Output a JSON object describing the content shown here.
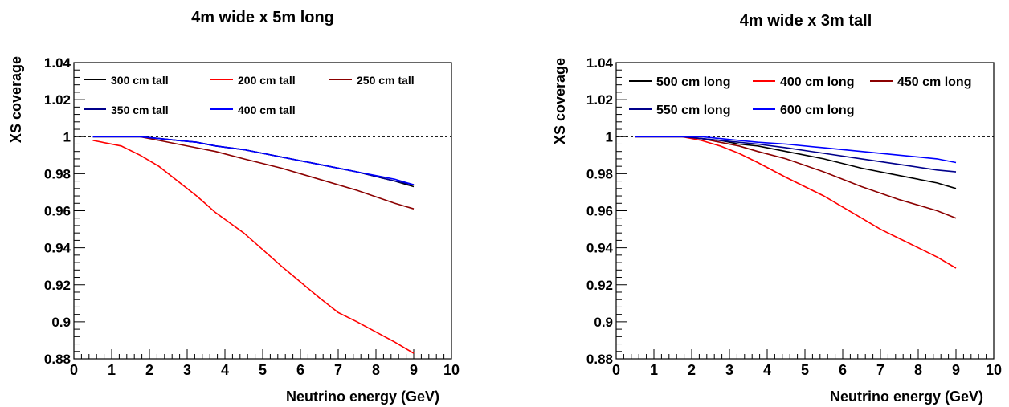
{
  "chart_data": [
    {
      "type": "line",
      "title": "4m wide x 5m long",
      "xlabel": "Neutrino energy (GeV)",
      "ylabel": "XS coverage",
      "xlim": [
        0,
        10
      ],
      "ylim": [
        0.88,
        1.04
      ],
      "x_ticks": [
        "0",
        "1",
        "2",
        "3",
        "4",
        "5",
        "6",
        "7",
        "8",
        "9",
        "10"
      ],
      "y_ticks": [
        "0.88",
        "0.9",
        "0.92",
        "0.94",
        "0.96",
        "0.98",
        "1",
        "1.02",
        "1.04"
      ],
      "reference_line": {
        "y": 1,
        "style": "dotted"
      },
      "legend_rows": [
        [
          0,
          1,
          2
        ],
        [
          3,
          4
        ]
      ],
      "series": [
        {
          "name": "300 cm tall",
          "color": "#000000",
          "x": [
            0.5,
            1.25,
            1.75,
            2.25,
            2.75,
            3.25,
            3.75,
            4.5,
            5.5,
            6.5,
            7.5,
            8.5,
            9.0
          ],
          "y": [
            1.0,
            1.0,
            1.0,
            0.999,
            0.998,
            0.997,
            0.995,
            0.993,
            0.989,
            0.985,
            0.981,
            0.976,
            0.973
          ]
        },
        {
          "name": "200 cm tall",
          "color": "#ff0000",
          "x": [
            0.5,
            1.25,
            1.75,
            2.25,
            2.75,
            3.25,
            3.75,
            4.5,
            5.5,
            6.5,
            7.0,
            7.5,
            8.5,
            9.0
          ],
          "y": [
            0.998,
            0.995,
            0.99,
            0.984,
            0.976,
            0.968,
            0.959,
            0.948,
            0.93,
            0.913,
            0.905,
            0.9,
            0.889,
            0.883
          ]
        },
        {
          "name": "250 cm tall",
          "color": "#8b0000",
          "x": [
            0.5,
            1.25,
            1.75,
            2.25,
            2.75,
            3.25,
            3.75,
            4.5,
            5.5,
            6.5,
            7.5,
            8.5,
            9.0
          ],
          "y": [
            1.0,
            1.0,
            1.0,
            0.998,
            0.996,
            0.994,
            0.992,
            0.988,
            0.983,
            0.977,
            0.971,
            0.964,
            0.961
          ]
        },
        {
          "name": "350 cm tall",
          "color": "#00008b",
          "x": [
            0.5,
            1.25,
            1.75,
            2.25,
            2.75,
            3.25,
            3.75,
            4.5,
            5.5,
            6.5,
            7.5,
            8.5,
            9.0
          ],
          "y": [
            1.0,
            1.0,
            1.0,
            0.999,
            0.998,
            0.997,
            0.995,
            0.993,
            0.989,
            0.985,
            0.981,
            0.976,
            0.974
          ]
        },
        {
          "name": "400 cm tall",
          "color": "#0000ff",
          "x": [
            0.5,
            1.25,
            1.75,
            2.25,
            2.75,
            3.25,
            3.75,
            4.5,
            5.5,
            6.5,
            7.5,
            8.5,
            9.0
          ],
          "y": [
            1.0,
            1.0,
            1.0,
            0.999,
            0.998,
            0.997,
            0.995,
            0.993,
            0.989,
            0.985,
            0.981,
            0.977,
            0.974
          ]
        }
      ]
    },
    {
      "type": "line",
      "title": "4m wide x 3m tall",
      "xlabel": "Neutrino energy (GeV)",
      "ylabel": "XS coverage",
      "xlim": [
        0,
        10
      ],
      "ylim": [
        0.88,
        1.04
      ],
      "x_ticks": [
        "0",
        "1",
        "2",
        "3",
        "4",
        "5",
        "6",
        "7",
        "8",
        "9",
        "10"
      ],
      "y_ticks": [
        "0.88",
        "0.9",
        "0.92",
        "0.94",
        "0.96",
        "0.98",
        "1",
        "1.02",
        "1.04"
      ],
      "reference_line": {
        "y": 1,
        "style": "dotted"
      },
      "legend_rows": [
        [
          0,
          1,
          2
        ],
        [
          3,
          4
        ]
      ],
      "series": [
        {
          "name": "500 cm long",
          "color": "#000000",
          "x": [
            0.5,
            1.25,
            1.75,
            2.25,
            2.75,
            3.25,
            3.75,
            4.5,
            5.5,
            6.5,
            7.5,
            8.5,
            9.0
          ],
          "y": [
            1.0,
            1.0,
            1.0,
            0.999,
            0.998,
            0.996,
            0.995,
            0.992,
            0.988,
            0.983,
            0.979,
            0.975,
            0.972
          ]
        },
        {
          "name": "400 cm long",
          "color": "#ff0000",
          "x": [
            0.5,
            1.25,
            1.75,
            2.25,
            2.75,
            3.25,
            3.75,
            4.5,
            5.5,
            6.5,
            7.0,
            7.5,
            8.5,
            9.0
          ],
          "y": [
            1.0,
            1.0,
            1.0,
            0.998,
            0.995,
            0.991,
            0.986,
            0.978,
            0.968,
            0.956,
            0.95,
            0.945,
            0.935,
            0.929
          ]
        },
        {
          "name": "450 cm long",
          "color": "#8b0000",
          "x": [
            0.5,
            1.25,
            1.75,
            2.25,
            2.75,
            3.25,
            3.75,
            4.5,
            5.5,
            6.5,
            7.5,
            8.5,
            9.0
          ],
          "y": [
            1.0,
            1.0,
            1.0,
            0.999,
            0.997,
            0.995,
            0.992,
            0.988,
            0.981,
            0.973,
            0.966,
            0.96,
            0.956
          ]
        },
        {
          "name": "550 cm long",
          "color": "#00008b",
          "x": [
            0.5,
            1.25,
            1.75,
            2.25,
            2.75,
            3.25,
            3.75,
            4.5,
            5.5,
            6.5,
            7.5,
            8.5,
            9.0
          ],
          "y": [
            1.0,
            1.0,
            1.0,
            0.999,
            0.998,
            0.997,
            0.996,
            0.994,
            0.991,
            0.988,
            0.985,
            0.982,
            0.981
          ]
        },
        {
          "name": "600 cm long",
          "color": "#0000ff",
          "x": [
            0.5,
            1.25,
            1.75,
            2.25,
            2.75,
            3.25,
            3.75,
            4.5,
            5.5,
            6.5,
            7.5,
            8.5,
            9.0
          ],
          "y": [
            1.0,
            1.0,
            1.0,
            1.0,
            0.999,
            0.998,
            0.997,
            0.996,
            0.994,
            0.992,
            0.99,
            0.988,
            0.986
          ]
        }
      ]
    }
  ]
}
